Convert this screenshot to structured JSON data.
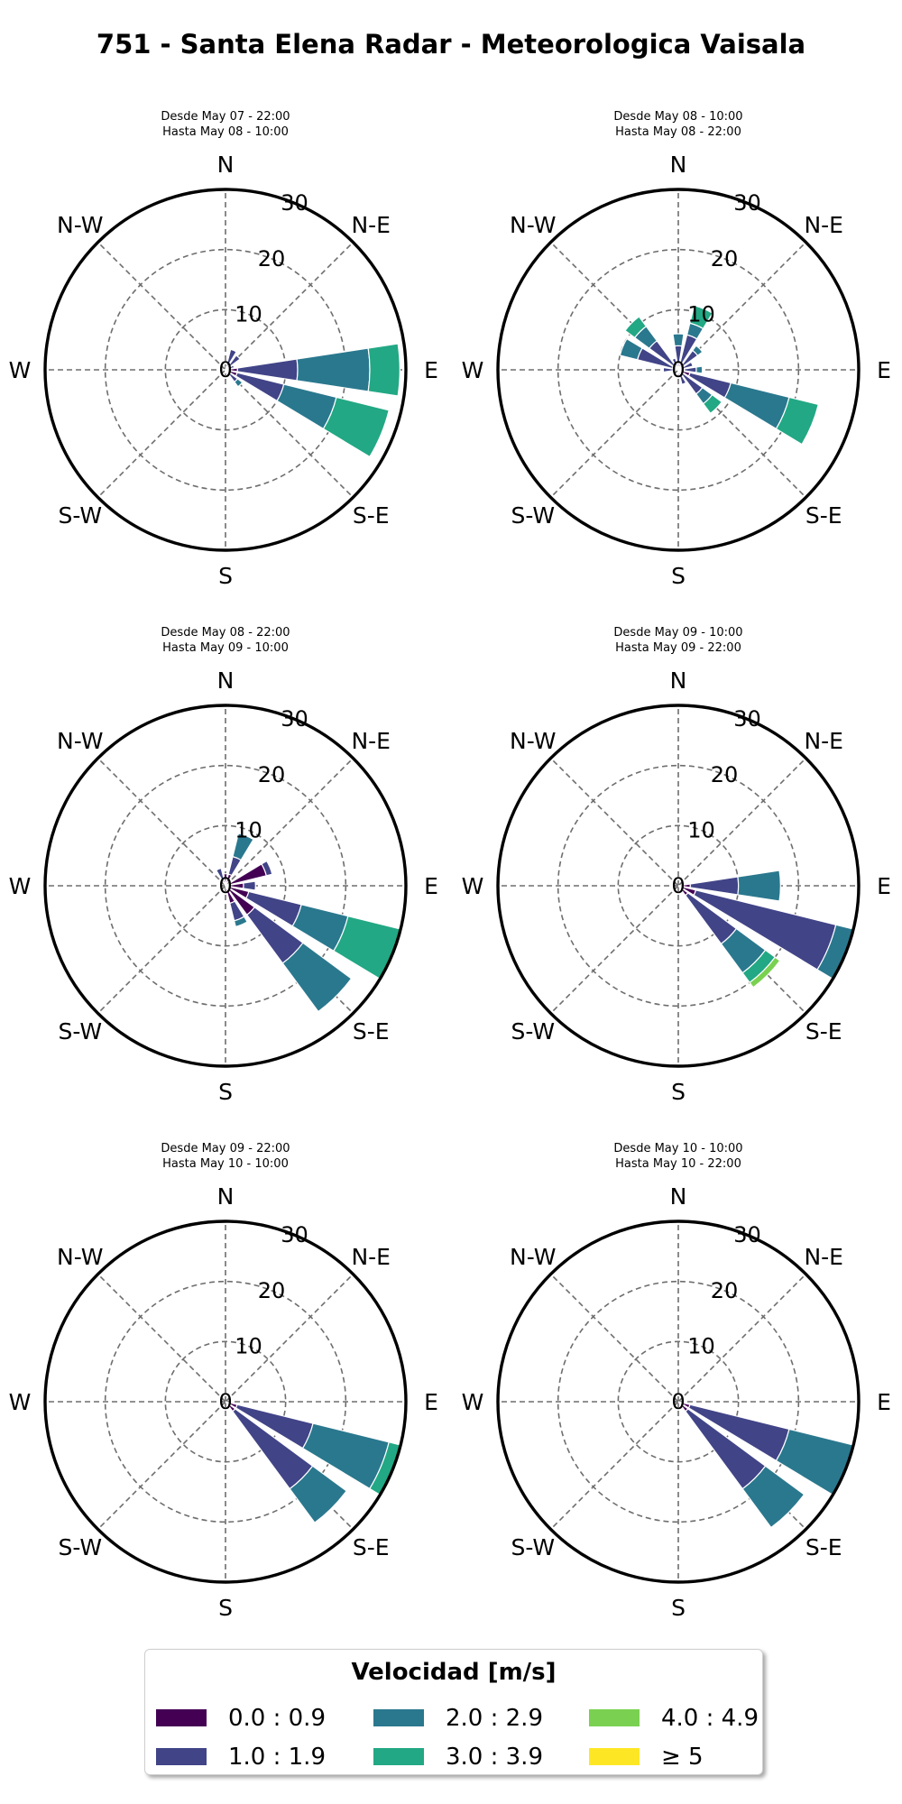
{
  "title": "751 - Santa Elena Radar - Meteorologica Vaisala",
  "legend": {
    "title": "Velocidad [m/s]",
    "bins": [
      {
        "label": "0.0 : 0.9",
        "color": "#440154"
      },
      {
        "label": "1.0 : 1.9",
        "color": "#414487"
      },
      {
        "label": "2.0 : 2.9",
        "color": "#2a788e"
      },
      {
        "label": "3.0 : 3.9",
        "color": "#22a884"
      },
      {
        "label": "4.0 : 4.9",
        "color": "#7ad151"
      },
      {
        "label": "≥ 5",
        "color": "#fde725"
      }
    ]
  },
  "chart_data": [
    {
      "type": "windrose",
      "subtitle": [
        "Desde May 07 - 22:00",
        "Hasta May 08 - 10:00"
      ],
      "directions": [
        "N",
        "N-E",
        "E",
        "S-E",
        "S",
        "S-W",
        "W",
        "N-W"
      ],
      "radial_ticks": [
        0,
        10,
        20,
        30
      ],
      "rmax": 30,
      "sectors": [
        {
          "angle": 22.5,
          "stack": [
            0.5,
            3
          ]
        },
        {
          "angle": 45,
          "stack": [
            1,
            2
          ]
        },
        {
          "angle": 67.5,
          "stack": [
            0.5,
            1
          ]
        },
        {
          "angle": 90,
          "stack": [
            2,
            10,
            12,
            5
          ]
        },
        {
          "angle": 112.5,
          "stack": [
            2,
            8,
            9,
            9
          ]
        },
        {
          "angle": 135,
          "stack": [
            1,
            1.5,
            1
          ]
        },
        {
          "angle": 157.5,
          "stack": [
            0.5,
            0.5
          ]
        },
        {
          "angle": 180,
          "stack": [
            0.5
          ]
        },
        {
          "angle": 270,
          "stack": [
            0.5
          ]
        }
      ]
    },
    {
      "type": "windrose",
      "subtitle": [
        "Desde May 08 - 10:00",
        "Hasta May 08 - 22:00"
      ],
      "directions": [
        "N",
        "N-E",
        "E",
        "S-E",
        "S",
        "S-W",
        "W",
        "N-W"
      ],
      "radial_ticks": [
        0,
        10,
        20,
        30
      ],
      "rmax": 30,
      "sectors": [
        {
          "angle": 0,
          "stack": [
            1,
            3,
            2
          ]
        },
        {
          "angle": 22.5,
          "stack": [
            1,
            5,
            2,
            3
          ]
        },
        {
          "angle": 45,
          "stack": [
            1,
            3,
            1
          ]
        },
        {
          "angle": 67.5,
          "stack": [
            0.5,
            2
          ]
        },
        {
          "angle": 90,
          "stack": [
            1,
            2,
            1
          ]
        },
        {
          "angle": 112.5,
          "stack": [
            2,
            7,
            10,
            5
          ]
        },
        {
          "angle": 135,
          "stack": [
            1,
            4,
            2,
            2
          ]
        },
        {
          "angle": 157.5,
          "stack": [
            0.5,
            2
          ]
        },
        {
          "angle": 180,
          "stack": [
            1
          ]
        },
        {
          "angle": 270,
          "stack": [
            0.5,
            2
          ]
        },
        {
          "angle": 292.5,
          "stack": [
            1,
            6,
            3
          ]
        },
        {
          "angle": 315,
          "stack": [
            1,
            5,
            3,
            2
          ]
        },
        {
          "angle": 337.5,
          "stack": [
            0.5,
            1.5
          ]
        }
      ]
    },
    {
      "type": "windrose",
      "subtitle": [
        "Desde May 08 - 22:00",
        "Hasta May 09 - 10:00"
      ],
      "directions": [
        "N",
        "N-E",
        "E",
        "S-E",
        "S",
        "S-W",
        "W",
        "N-W"
      ],
      "radial_ticks": [
        0,
        10,
        20,
        30
      ],
      "rmax": 30,
      "sectors": [
        {
          "angle": 0,
          "stack": [
            2
          ]
        },
        {
          "angle": 22.5,
          "stack": [
            2,
            3,
            4
          ]
        },
        {
          "angle": 67.5,
          "stack": [
            7,
            1
          ]
        },
        {
          "angle": 90,
          "stack": [
            3,
            2
          ]
        },
        {
          "angle": 112.5,
          "stack": [
            4,
            9,
            8,
            11
          ]
        },
        {
          "angle": 135,
          "stack": [
            6,
            10,
            10
          ]
        },
        {
          "angle": 157.5,
          "stack": [
            3,
            3,
            1
          ]
        },
        {
          "angle": 337.5,
          "stack": [
            1,
            2
          ]
        }
      ]
    },
    {
      "type": "windrose",
      "subtitle": [
        "Desde May 09 - 10:00",
        "Hasta May 09 - 22:00"
      ],
      "directions": [
        "N",
        "N-E",
        "E",
        "S-E",
        "S",
        "S-W",
        "W",
        "N-W"
      ],
      "radial_ticks": [
        0,
        10,
        20,
        30
      ],
      "rmax": 30,
      "sectors": [
        {
          "angle": 90,
          "stack": [
            2,
            8,
            7
          ]
        },
        {
          "angle": 112.5,
          "stack": [
            3,
            24,
            6
          ]
        },
        {
          "angle": 135,
          "stack": [
            2,
            10,
            6,
            2,
            1
          ]
        }
      ]
    },
    {
      "type": "windrose",
      "subtitle": [
        "Desde May 09 - 22:00",
        "Hasta May 10 - 10:00"
      ],
      "directions": [
        "N",
        "N-E",
        "E",
        "S-E",
        "S",
        "S-W",
        "W",
        "N-W"
      ],
      "radial_ticks": [
        0,
        10,
        20,
        30
      ],
      "rmax": 30,
      "sectors": [
        {
          "angle": 112.5,
          "stack": [
            2,
            13,
            13,
            2
          ]
        },
        {
          "angle": 135,
          "stack": [
            2,
            16,
            7
          ]
        }
      ]
    },
    {
      "type": "windrose",
      "subtitle": [
        "Desde May 10 - 10:00",
        "Hasta May 10 - 22:00"
      ],
      "directions": [
        "N",
        "N-E",
        "E",
        "S-E",
        "S",
        "S-W",
        "W",
        "N-W"
      ],
      "radial_ticks": [
        0,
        10,
        20,
        30
      ],
      "rmax": 30,
      "sectors": [
        {
          "angle": 112.5,
          "stack": [
            2,
            17,
            15
          ]
        },
        {
          "angle": 135,
          "stack": [
            2,
            16,
            8
          ]
        }
      ]
    }
  ]
}
